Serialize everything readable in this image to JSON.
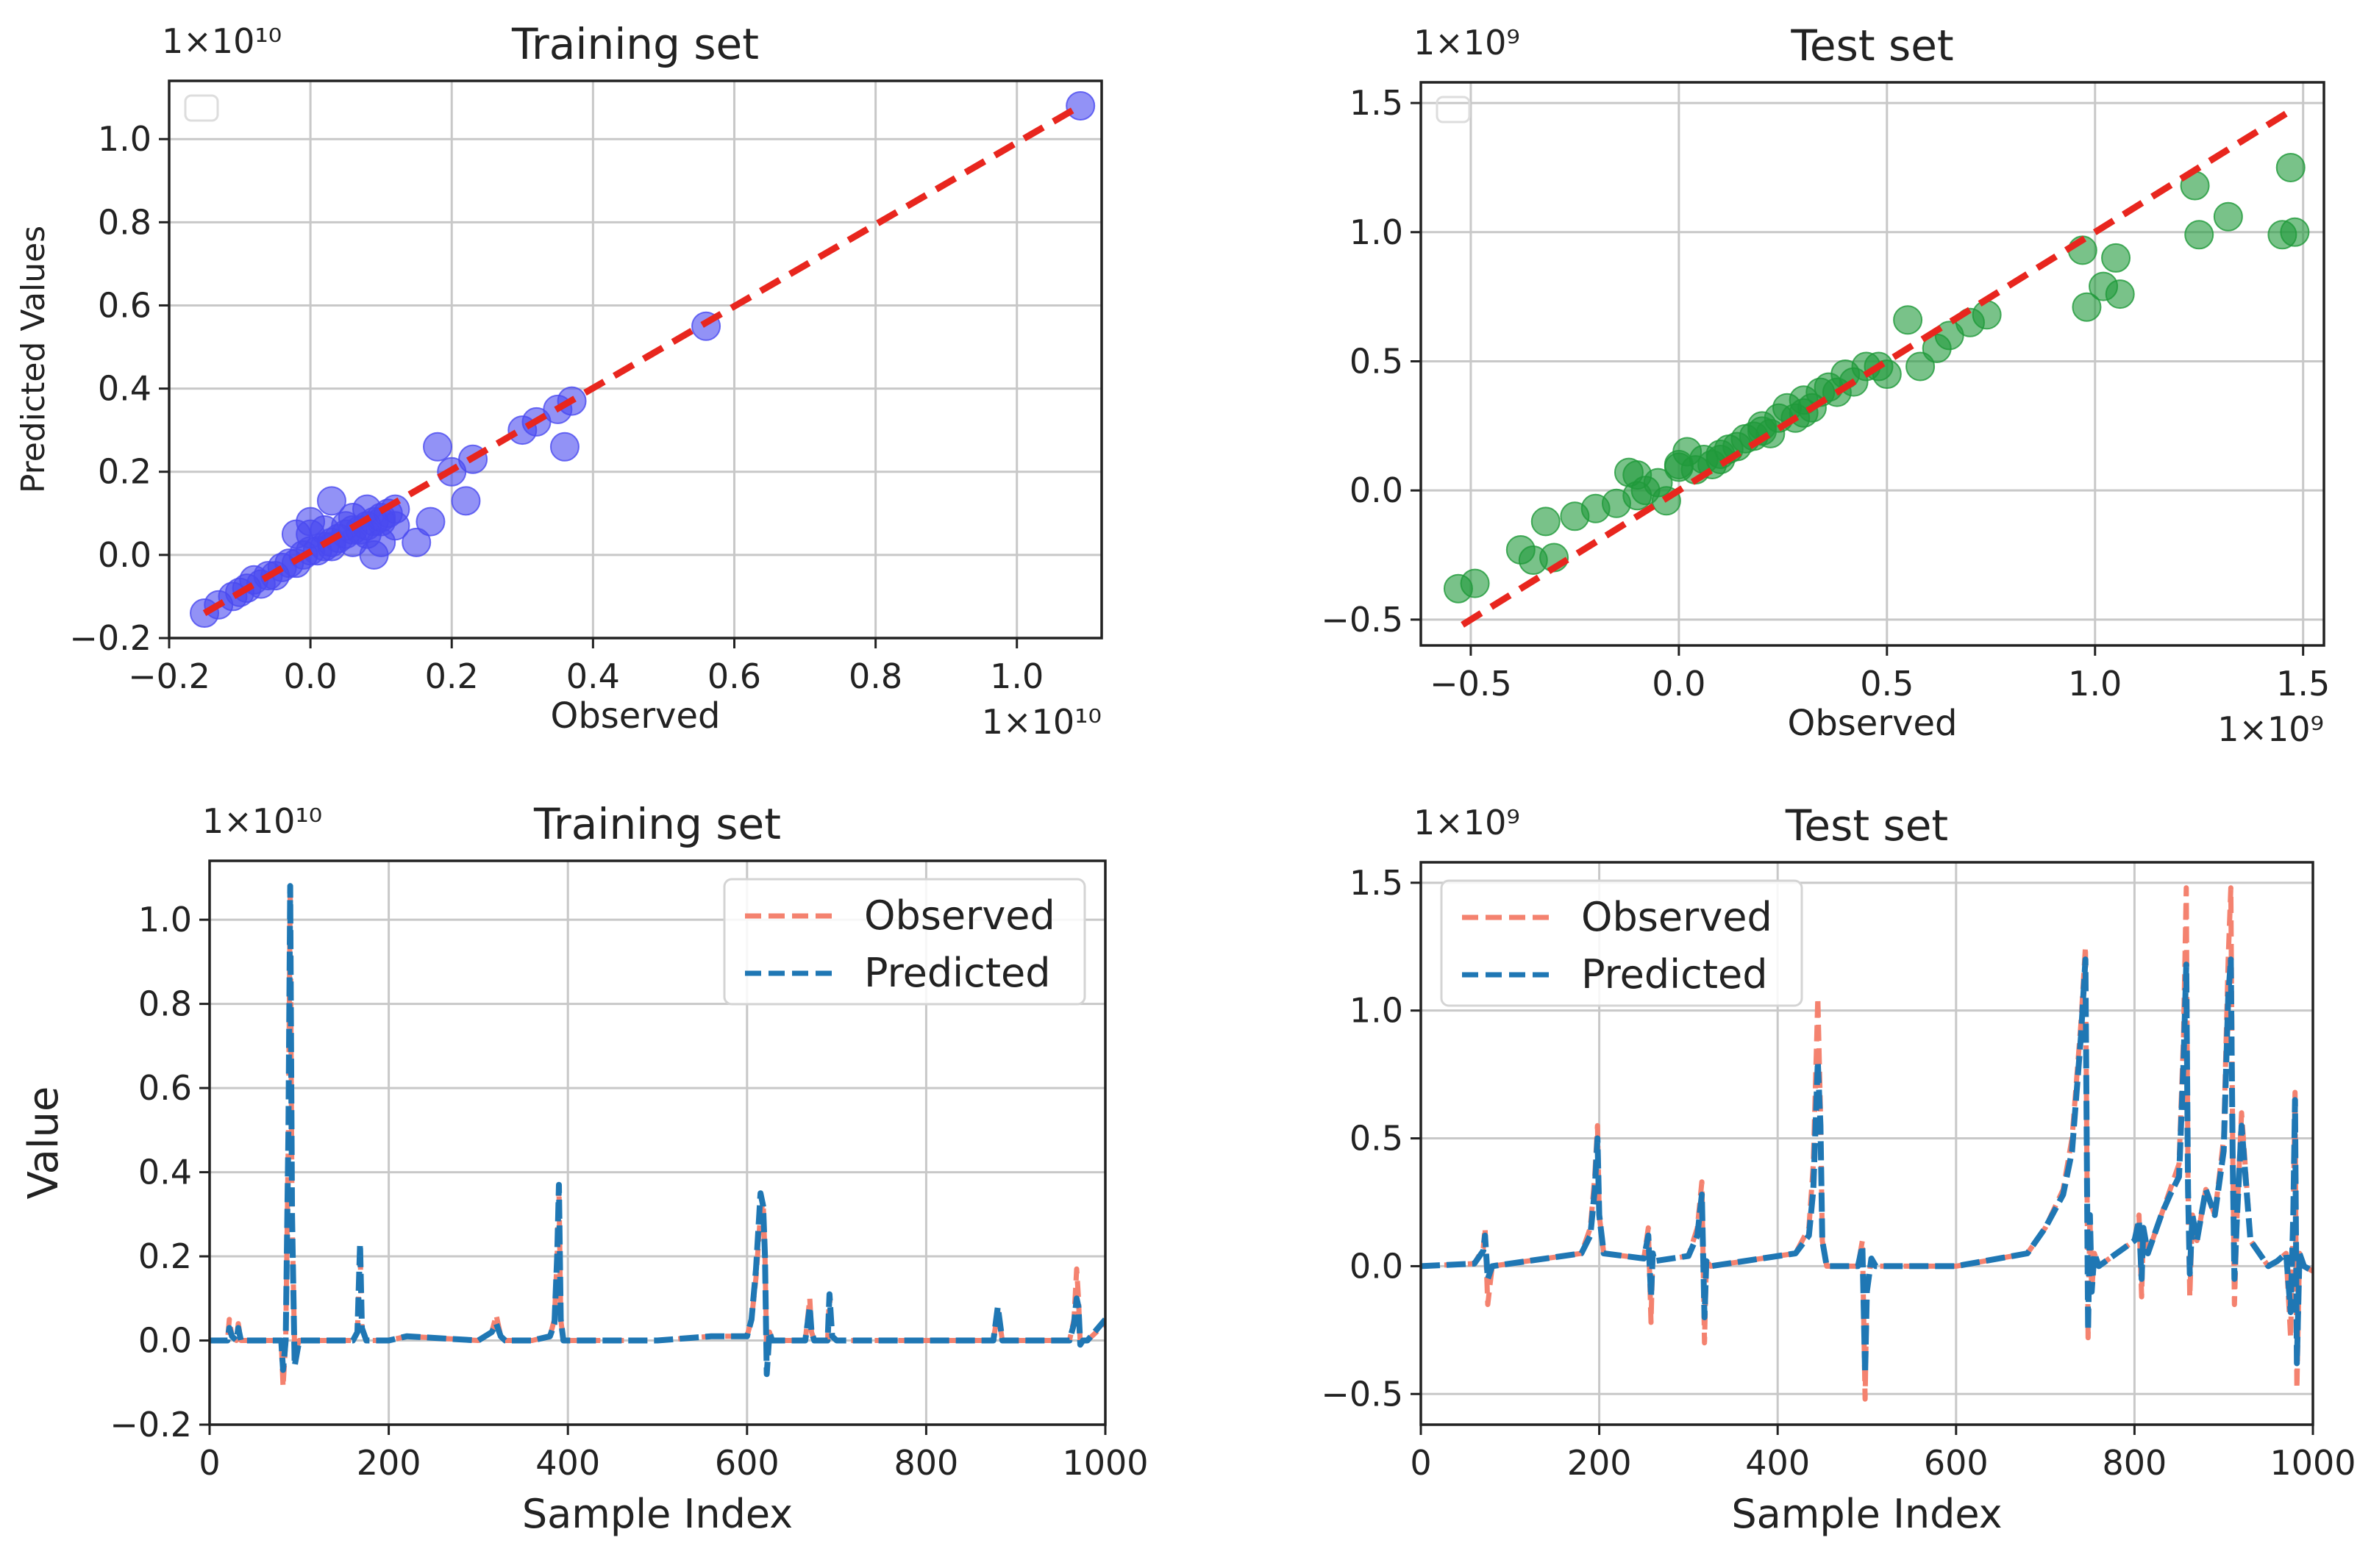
{
  "chart_data": [
    {
      "type": "scatter",
      "title": "Training set",
      "xlabel": "Observed",
      "ylabel": "Predicted Values",
      "x_multiplier": "1×10¹⁰",
      "y_multiplier": "1×10¹⁰",
      "x_ticks": [
        "−0.2",
        "0.0",
        "0.2",
        "0.4",
        "0.6",
        "0.8",
        "1.0"
      ],
      "y_ticks": [
        "−0.2",
        "0.0",
        "0.2",
        "0.4",
        "0.6",
        "0.8",
        "1.0"
      ],
      "xlim": [
        -0.2,
        1.12
      ],
      "ylim": [
        -0.2,
        1.14
      ],
      "grid": true,
      "legend": "top-left (empty)",
      "marker_color": "#4a4af0",
      "reference_line": {
        "style": "dashed",
        "color": "#e8261e",
        "from": [
          -0.15,
          -0.14
        ],
        "to": [
          1.09,
          1.08
        ]
      },
      "x": [
        -0.15,
        -0.13,
        -0.11,
        -0.1,
        -0.09,
        -0.08,
        -0.07,
        -0.06,
        -0.05,
        -0.04,
        -0.03,
        -0.02,
        -0.01,
        0.0,
        0.01,
        0.02,
        0.03,
        0.04,
        0.05,
        0.06,
        0.07,
        0.08,
        0.09,
        0.1,
        0.11,
        0.12,
        -0.02,
        0.0,
        0.02,
        0.03,
        0.05,
        0.06,
        0.08,
        0.09,
        0.1,
        0.0,
        0.03,
        0.06,
        0.08,
        0.1,
        0.12,
        0.15,
        0.17,
        0.18,
        0.2,
        0.22,
        0.23,
        0.3,
        0.32,
        0.35,
        0.37,
        0.36,
        0.56,
        1.09
      ],
      "y": [
        -0.14,
        -0.12,
        -0.1,
        -0.09,
        -0.08,
        -0.06,
        -0.07,
        -0.05,
        -0.05,
        -0.03,
        -0.02,
        -0.02,
        0.0,
        0.01,
        0.01,
        0.02,
        0.03,
        0.04,
        0.05,
        0.06,
        0.06,
        0.07,
        0.08,
        0.09,
        0.1,
        0.11,
        0.05,
        0.08,
        0.06,
        0.13,
        0.07,
        0.03,
        0.05,
        0.0,
        0.08,
        0.05,
        0.02,
        0.09,
        0.11,
        0.03,
        0.07,
        0.03,
        0.08,
        0.26,
        0.2,
        0.13,
        0.23,
        0.3,
        0.32,
        0.35,
        0.37,
        0.26,
        0.55,
        1.08
      ]
    },
    {
      "type": "scatter",
      "title": "Test set",
      "xlabel": "Observed",
      "ylabel": "",
      "x_multiplier": "1×10⁹",
      "y_multiplier": "1×10⁹",
      "x_ticks": [
        "−0.5",
        "0.0",
        "0.5",
        "1.0",
        "1.5"
      ],
      "y_ticks": [
        "−0.5",
        "0.0",
        "0.5",
        "1.0",
        "1.5"
      ],
      "xlim": [
        -0.62,
        1.55
      ],
      "ylim": [
        -0.6,
        1.58
      ],
      "grid": true,
      "legend": "top-left (empty)",
      "marker_color": "#1f9a3a",
      "reference_line": {
        "style": "dashed",
        "color": "#e8261e",
        "from": [
          -0.52,
          -0.52
        ],
        "to": [
          1.47,
          1.47
        ]
      },
      "x": [
        -0.53,
        -0.49,
        -0.38,
        -0.35,
        -0.32,
        -0.3,
        -0.25,
        -0.2,
        -0.15,
        -0.12,
        -0.1,
        -0.08,
        -0.05,
        -0.03,
        0.0,
        0.02,
        0.04,
        0.06,
        0.08,
        0.1,
        0.12,
        0.14,
        0.16,
        0.18,
        0.2,
        0.22,
        0.24,
        0.26,
        0.28,
        0.3,
        0.32,
        0.34,
        0.36,
        0.38,
        0.4,
        0.42,
        0.45,
        0.48,
        0.5,
        0.55,
        0.58,
        0.62,
        0.65,
        0.7,
        0.74,
        0.97,
        0.98,
        1.02,
        1.05,
        1.06,
        1.24,
        1.25,
        1.32,
        1.45,
        1.47,
        1.48,
        -0.1,
        0.0,
        0.1,
        0.2,
        0.3
      ],
      "y": [
        -0.38,
        -0.36,
        -0.23,
        -0.27,
        -0.12,
        -0.26,
        -0.1,
        -0.07,
        -0.05,
        0.07,
        -0.02,
        0.0,
        0.03,
        -0.04,
        0.1,
        0.15,
        0.08,
        0.12,
        0.1,
        0.14,
        0.16,
        0.17,
        0.2,
        0.21,
        0.25,
        0.22,
        0.28,
        0.32,
        0.28,
        0.35,
        0.32,
        0.38,
        0.4,
        0.38,
        0.45,
        0.42,
        0.48,
        0.48,
        0.45,
        0.66,
        0.48,
        0.55,
        0.6,
        0.65,
        0.68,
        0.93,
        0.71,
        0.79,
        0.9,
        0.76,
        1.18,
        0.99,
        1.06,
        0.99,
        1.25,
        1.0,
        0.06,
        0.09,
        0.12,
        0.23,
        0.3
      ]
    },
    {
      "type": "line",
      "title": "Training set",
      "xlabel": "Sample Index",
      "ylabel": "Value",
      "y_multiplier": "1×10¹⁰",
      "x_ticks": [
        "0",
        "200",
        "400",
        "600",
        "800",
        "1000"
      ],
      "y_ticks": [
        "−0.2",
        "0.0",
        "0.2",
        "0.4",
        "0.6",
        "0.8",
        "1.0"
      ],
      "xlim": [
        0,
        1000
      ],
      "ylim": [
        -0.2,
        1.14
      ],
      "grid": true,
      "legend": "top-right",
      "series": [
        {
          "name": "Observed",
          "color": "#f4826f",
          "style": "dashed",
          "x": [
            0,
            20,
            22,
            25,
            30,
            32,
            35,
            80,
            82,
            85,
            88,
            90,
            92,
            95,
            100,
            160,
            165,
            168,
            170,
            175,
            200,
            220,
            300,
            315,
            320,
            325,
            330,
            360,
            380,
            385,
            388,
            390,
            392,
            395,
            400,
            500,
            560,
            600,
            605,
            610,
            615,
            618,
            620,
            622,
            625,
            628,
            630,
            665,
            670,
            672,
            675,
            690,
            692,
            695,
            700,
            800,
            875,
            880,
            885,
            900,
            960,
            965,
            968,
            970,
            972,
            975,
            980,
            1000
          ],
          "y": [
            0,
            0.0,
            0.05,
            0.01,
            0.0,
            0.04,
            0.0,
            0.0,
            -0.11,
            0.0,
            0.5,
            1.08,
            0.3,
            -0.03,
            0.0,
            0.0,
            0.02,
            0.22,
            0.03,
            0.0,
            0.0,
            0.01,
            0.0,
            0.02,
            0.06,
            0.01,
            0.0,
            0.0,
            0.01,
            0.05,
            0.2,
            0.37,
            0.05,
            0.0,
            0.0,
            0.0,
            0.01,
            0.01,
            0.05,
            0.15,
            0.3,
            0.33,
            0.2,
            -0.04,
            0.02,
            0.0,
            0.0,
            0.0,
            0.1,
            0.02,
            0.0,
            0.0,
            0.11,
            0.01,
            0.0,
            0.0,
            0.0,
            0.07,
            0.0,
            0.0,
            0.0,
            0.05,
            0.17,
            0.1,
            -0.01,
            0.0,
            0.0,
            0.04
          ]
        },
        {
          "name": "Predicted",
          "color": "#1f77b4",
          "style": "dashed",
          "x": [
            0,
            20,
            22,
            25,
            30,
            32,
            35,
            80,
            82,
            85,
            88,
            90,
            92,
            95,
            100,
            160,
            165,
            168,
            170,
            175,
            200,
            220,
            300,
            315,
            320,
            325,
            330,
            360,
            380,
            385,
            388,
            390,
            392,
            395,
            400,
            500,
            560,
            600,
            605,
            610,
            615,
            618,
            620,
            622,
            625,
            628,
            630,
            665,
            670,
            672,
            675,
            690,
            692,
            695,
            700,
            800,
            875,
            880,
            885,
            900,
            960,
            965,
            968,
            970,
            972,
            975,
            980,
            1000
          ],
          "y": [
            0,
            0.0,
            0.03,
            0.01,
            0.0,
            0.03,
            0.0,
            0.0,
            -0.07,
            0.0,
            0.5,
            1.08,
            0.3,
            -0.06,
            0.0,
            0.0,
            0.02,
            0.23,
            0.03,
            0.0,
            0.0,
            0.01,
            0.0,
            0.02,
            0.04,
            0.01,
            0.0,
            0.0,
            0.01,
            0.04,
            0.2,
            0.37,
            0.05,
            0.0,
            0.0,
            0.0,
            0.01,
            0.01,
            0.05,
            0.17,
            0.35,
            0.32,
            0.2,
            -0.08,
            0.02,
            0.0,
            0.0,
            0.0,
            0.08,
            0.02,
            0.0,
            0.0,
            0.11,
            0.01,
            0.0,
            0.0,
            0.0,
            0.08,
            0.0,
            0.0,
            0.0,
            0.04,
            0.1,
            0.08,
            -0.01,
            0.0,
            0.0,
            0.05
          ]
        }
      ]
    },
    {
      "type": "line",
      "title": "Test set",
      "xlabel": "Sample Index",
      "ylabel": "",
      "y_multiplier": "1×10⁹",
      "x_ticks": [
        "0",
        "200",
        "400",
        "600",
        "800",
        "1000"
      ],
      "y_ticks": [
        "−0.5",
        "0.0",
        "0.5",
        "1.0",
        "1.5"
      ],
      "xlim": [
        0,
        1000
      ],
      "ylim": [
        -0.62,
        1.58
      ],
      "grid": true,
      "legend": "top-left",
      "series": [
        {
          "name": "Observed",
          "color": "#f4826f",
          "style": "dashed",
          "x": [
            0,
            60,
            70,
            72,
            75,
            80,
            180,
            190,
            195,
            198,
            200,
            205,
            250,
            255,
            258,
            260,
            262,
            300,
            310,
            315,
            318,
            320,
            325,
            420,
            435,
            440,
            445,
            448,
            450,
            455,
            470,
            490,
            495,
            498,
            500,
            505,
            510,
            600,
            680,
            700,
            720,
            730,
            740,
            745,
            748,
            750,
            752,
            755,
            760,
            800,
            805,
            808,
            810,
            815,
            830,
            840,
            850,
            855,
            858,
            860,
            862,
            865,
            870,
            880,
            890,
            900,
            905,
            908,
            910,
            912,
            915,
            920,
            930,
            940,
            950,
            960,
            970,
            975,
            978,
            980,
            982,
            985,
            990,
            1000
          ],
          "y": [
            0,
            0.01,
            0.07,
            0.15,
            -0.15,
            0.0,
            0.05,
            0.15,
            0.35,
            0.55,
            0.2,
            0.05,
            0.03,
            0.15,
            -0.22,
            0.05,
            0.02,
            0.04,
            0.15,
            0.33,
            -0.3,
            0.02,
            0.0,
            0.05,
            0.15,
            0.4,
            1.05,
            0.6,
            0.1,
            0.0,
            0.0,
            0.0,
            0.1,
            -0.52,
            -0.1,
            0.03,
            0.0,
            0.0,
            0.05,
            0.15,
            0.3,
            0.5,
            0.95,
            1.25,
            -0.28,
            0.2,
            -0.1,
            0.05,
            0.0,
            0.1,
            0.2,
            -0.12,
            0.15,
            0.05,
            0.2,
            0.3,
            0.4,
            0.9,
            1.48,
            0.3,
            -0.12,
            0.2,
            0.1,
            0.3,
            0.2,
            0.5,
            1.2,
            1.48,
            0.5,
            -0.15,
            0.2,
            0.6,
            0.1,
            0.05,
            0.0,
            0.02,
            0.05,
            -0.28,
            0.2,
            0.68,
            -0.48,
            0.05,
            0.0,
            -0.02
          ]
        },
        {
          "name": "Predicted",
          "color": "#1f77b4",
          "style": "dashed",
          "x": [
            0,
            60,
            70,
            72,
            75,
            80,
            180,
            190,
            195,
            198,
            200,
            205,
            250,
            255,
            258,
            260,
            262,
            300,
            310,
            315,
            318,
            320,
            325,
            420,
            435,
            440,
            445,
            448,
            450,
            455,
            470,
            490,
            495,
            498,
            500,
            505,
            510,
            600,
            680,
            700,
            720,
            730,
            740,
            745,
            748,
            750,
            752,
            755,
            760,
            800,
            805,
            808,
            810,
            815,
            830,
            840,
            850,
            855,
            858,
            860,
            862,
            865,
            870,
            880,
            890,
            900,
            905,
            908,
            910,
            912,
            915,
            920,
            930,
            940,
            950,
            960,
            970,
            975,
            978,
            980,
            982,
            985,
            990,
            1000
          ],
          "y": [
            0,
            0.01,
            0.06,
            0.12,
            -0.05,
            0.0,
            0.05,
            0.12,
            0.3,
            0.5,
            0.2,
            0.05,
            0.03,
            0.12,
            -0.12,
            0.05,
            0.02,
            0.04,
            0.12,
            0.28,
            -0.2,
            0.02,
            0.0,
            0.05,
            0.12,
            0.3,
            0.8,
            0.55,
            0.1,
            0.0,
            0.0,
            0.0,
            0.08,
            -0.42,
            -0.1,
            0.03,
            0.0,
            0.0,
            0.05,
            0.15,
            0.28,
            0.45,
            0.9,
            1.2,
            -0.25,
            0.2,
            -0.1,
            0.05,
            0.0,
            0.1,
            0.18,
            -0.05,
            0.15,
            0.05,
            0.2,
            0.28,
            0.35,
            0.8,
            1.18,
            0.3,
            -0.03,
            0.2,
            0.1,
            0.3,
            0.2,
            0.45,
            1.05,
            1.2,
            0.45,
            -0.05,
            0.2,
            0.55,
            0.1,
            0.05,
            0.0,
            0.02,
            0.05,
            -0.18,
            0.2,
            0.65,
            -0.38,
            0.05,
            0.0,
            -0.02
          ]
        }
      ]
    }
  ]
}
